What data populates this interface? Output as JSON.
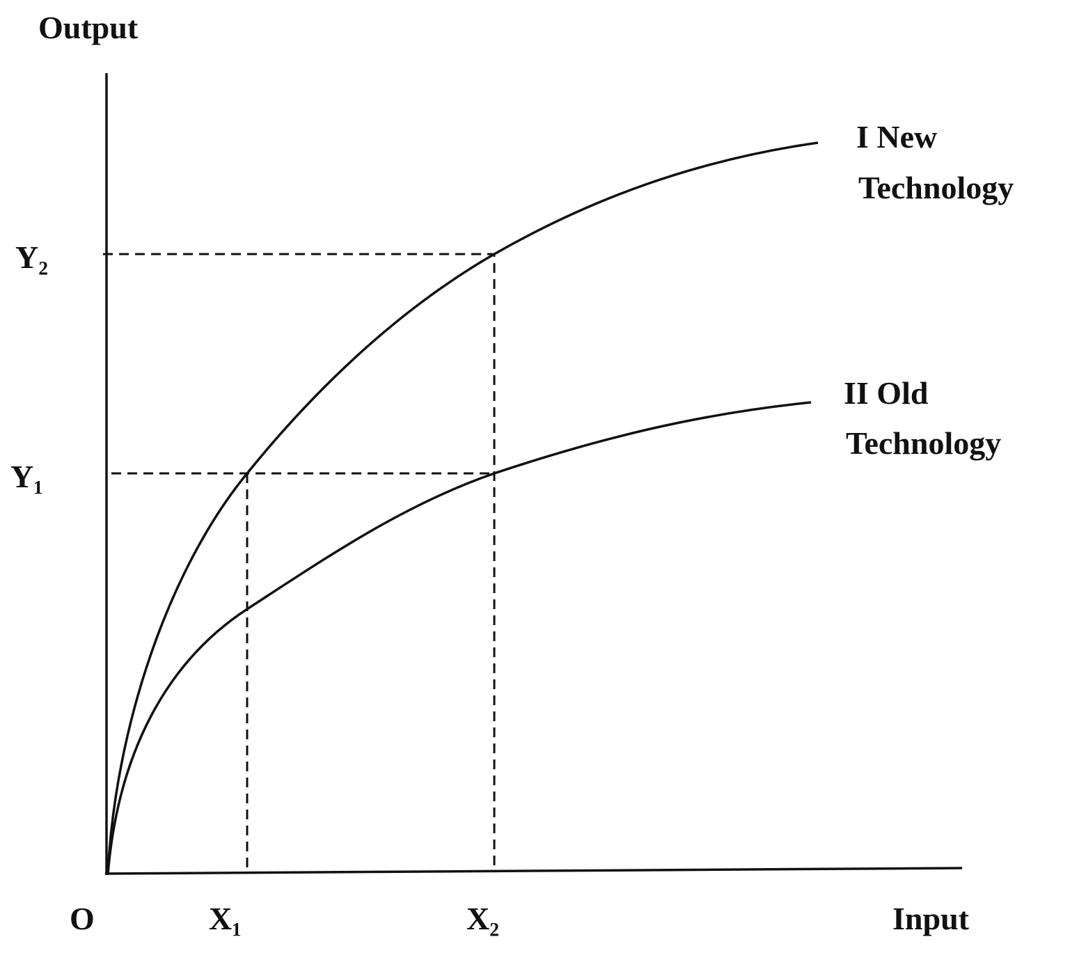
{
  "axes": {
    "y_label": "Output",
    "x_label": "Input",
    "origin": "O"
  },
  "points": {
    "x": [
      "X₁",
      "X₂"
    ],
    "y": [
      "Y₁",
      "Y₂"
    ]
  },
  "curves": [
    {
      "label": [
        "I New",
        "Technology"
      ]
    },
    {
      "label": [
        "II Old",
        "Technology"
      ]
    }
  ]
}
